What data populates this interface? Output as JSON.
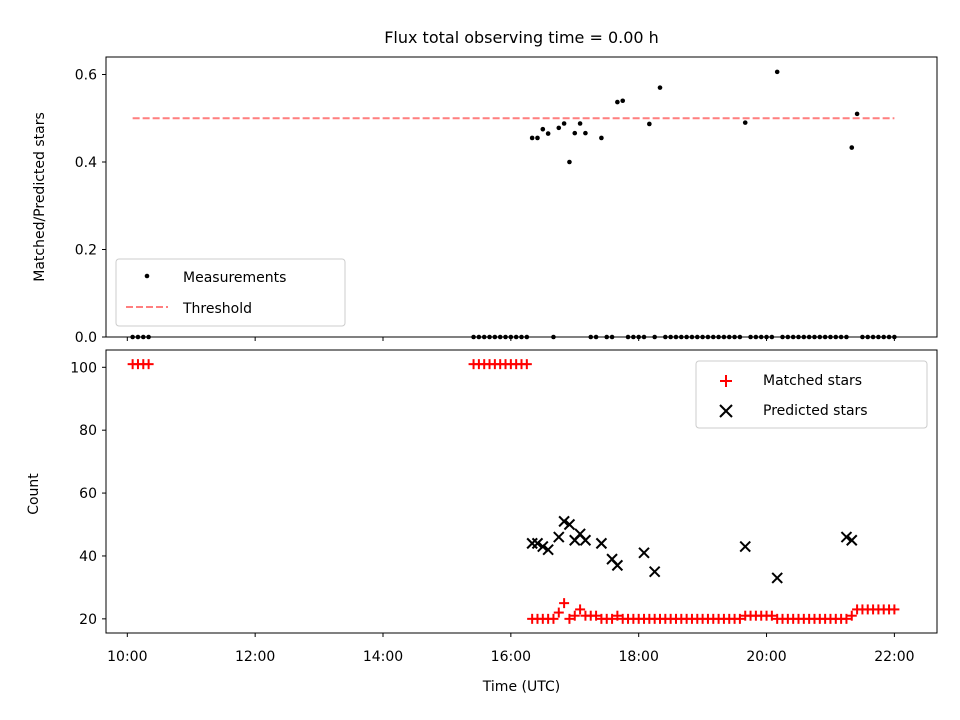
{
  "figure": {
    "title": "Flux total observing time = 0.00 h",
    "xlabel": "Time (UTC)"
  },
  "colors": {
    "threshold": "#ff7f7f",
    "measurements": "#000000",
    "matched": "#ff0000",
    "predicted": "#000000"
  },
  "chart_data": [
    {
      "type": "scatter",
      "panel": "top",
      "ylabel": "Matched/Predicted stars",
      "xlim": [
        "09:40",
        "22:40"
      ],
      "ylim": [
        0,
        0.64
      ],
      "xticks": [
        "10:00",
        "12:00",
        "14:00",
        "16:00",
        "18:00",
        "20:00",
        "22:00"
      ],
      "yticks": [
        "0.0",
        "0.2",
        "0.4",
        "0.6"
      ],
      "legend": {
        "position": "lower-left",
        "entries": [
          "Measurements",
          "Threshold"
        ]
      },
      "threshold": {
        "name": "Threshold",
        "y": 0.5,
        "x_start": "10:05",
        "x_end": "22:00"
      },
      "series": [
        {
          "name": "Measurements",
          "x": [
            "10:05",
            "10:10",
            "10:15",
            "10:20",
            "15:25",
            "15:30",
            "15:35",
            "15:40",
            "15:45",
            "15:50",
            "15:55",
            "16:00",
            "16:05",
            "16:10",
            "16:15",
            "16:20",
            "16:25",
            "16:30",
            "16:35",
            "16:40",
            "16:45",
            "16:50",
            "16:55",
            "17:00",
            "17:05",
            "17:10",
            "17:15",
            "17:20",
            "17:25",
            "17:30",
            "17:35",
            "17:40",
            "17:45",
            "17:50",
            "17:55",
            "18:00",
            "18:05",
            "18:10",
            "18:15",
            "18:20",
            "18:25",
            "18:30",
            "18:35",
            "18:40",
            "18:45",
            "18:50",
            "18:55",
            "19:00",
            "19:05",
            "19:10",
            "19:15",
            "19:20",
            "19:25",
            "19:30",
            "19:35",
            "19:40",
            "19:45",
            "19:50",
            "19:55",
            "20:00",
            "20:05",
            "20:10",
            "20:15",
            "20:20",
            "20:25",
            "20:30",
            "20:35",
            "20:40",
            "20:45",
            "20:50",
            "20:55",
            "21:00",
            "21:05",
            "21:10",
            "21:15",
            "21:20",
            "21:25",
            "21:30",
            "21:35",
            "21:40",
            "21:45",
            "21:50",
            "21:55",
            "22:00"
          ],
          "y": [
            0,
            0,
            0,
            0,
            0,
            0,
            0,
            0,
            0,
            0,
            0,
            0,
            0,
            0,
            0,
            0.455,
            0.455,
            0.475,
            0.465,
            0,
            0.478,
            0.488,
            0.4,
            0.466,
            0.488,
            0.466,
            0,
            0,
            0.455,
            0,
            0,
            0.537,
            0.54,
            0,
            0,
            0,
            0,
            0.487,
            0,
            0.57,
            0,
            0,
            0,
            0,
            0,
            0,
            0,
            0,
            0,
            0,
            0,
            0,
            0,
            0,
            0,
            0.49,
            0,
            0,
            0,
            0,
            0,
            0.606,
            0,
            0,
            0,
            0,
            0,
            0,
            0,
            0,
            0,
            0,
            0,
            0,
            0,
            0.433,
            0.51,
            0,
            0,
            0,
            0,
            0,
            0,
            0
          ]
        }
      ]
    },
    {
      "type": "scatter",
      "panel": "bottom",
      "ylabel": "Count",
      "xlim": [
        "09:40",
        "22:40"
      ],
      "ylim": [
        15.5,
        105.5
      ],
      "xticks": [
        "10:00",
        "12:00",
        "14:00",
        "16:00",
        "18:00",
        "20:00",
        "22:00"
      ],
      "yticks": [
        "20",
        "40",
        "60",
        "80",
        "100"
      ],
      "legend": {
        "position": "upper-right",
        "entries": [
          "Matched stars",
          "Predicted stars"
        ]
      },
      "series": [
        {
          "name": "Matched stars",
          "marker": "+",
          "x": [
            "10:05",
            "10:10",
            "10:15",
            "10:20",
            "15:25",
            "15:30",
            "15:35",
            "15:40",
            "15:45",
            "15:50",
            "15:55",
            "16:00",
            "16:05",
            "16:10",
            "16:15",
            "16:20",
            "16:25",
            "16:30",
            "16:35",
            "16:40",
            "16:45",
            "16:50",
            "16:55",
            "17:00",
            "17:05",
            "17:10",
            "17:15",
            "17:20",
            "17:25",
            "17:30",
            "17:35",
            "17:40",
            "17:45",
            "17:50",
            "17:55",
            "18:00",
            "18:05",
            "18:10",
            "18:15",
            "18:20",
            "18:25",
            "18:30",
            "18:35",
            "18:40",
            "18:45",
            "18:50",
            "18:55",
            "19:00",
            "19:05",
            "19:10",
            "19:15",
            "19:20",
            "19:25",
            "19:30",
            "19:35",
            "19:40",
            "19:45",
            "19:50",
            "19:55",
            "20:00",
            "20:05",
            "20:10",
            "20:15",
            "20:20",
            "20:25",
            "20:30",
            "20:35",
            "20:40",
            "20:45",
            "20:50",
            "20:55",
            "21:00",
            "21:05",
            "21:10",
            "21:15",
            "21:20",
            "21:25",
            "21:30",
            "21:35",
            "21:40",
            "21:45",
            "21:50",
            "21:55",
            "22:00"
          ],
          "y": [
            101,
            101,
            101,
            101,
            101,
            101,
            101,
            101,
            101,
            101,
            101,
            101,
            101,
            101,
            101,
            20,
            20,
            20,
            20,
            20,
            22,
            25,
            20,
            21,
            23,
            21,
            21,
            21,
            20,
            20,
            20,
            21,
            20,
            20,
            20,
            20,
            20,
            20,
            20,
            20,
            20,
            20,
            20,
            20,
            20,
            20,
            20,
            20,
            20,
            20,
            20,
            20,
            20,
            20,
            20,
            21,
            21,
            21,
            21,
            21,
            21,
            20,
            20,
            20,
            20,
            20,
            20,
            20,
            20,
            20,
            20,
            20,
            20,
            20,
            20,
            21,
            23,
            23,
            23,
            23,
            23,
            23,
            23,
            23
          ]
        },
        {
          "name": "Predicted stars",
          "marker": "x",
          "x": [
            "16:20",
            "16:25",
            "16:30",
            "16:35",
            "16:45",
            "16:50",
            "16:55",
            "17:00",
            "17:05",
            "17:10",
            "17:25",
            "17:35",
            "17:40",
            "18:05",
            "18:15",
            "19:40",
            "20:10",
            "21:15",
            "21:20"
          ],
          "y": [
            44,
            44,
            43,
            42,
            46,
            51,
            50,
            45,
            47,
            45,
            44,
            39,
            37,
            41,
            35,
            43,
            33,
            46,
            45
          ]
        }
      ]
    }
  ]
}
